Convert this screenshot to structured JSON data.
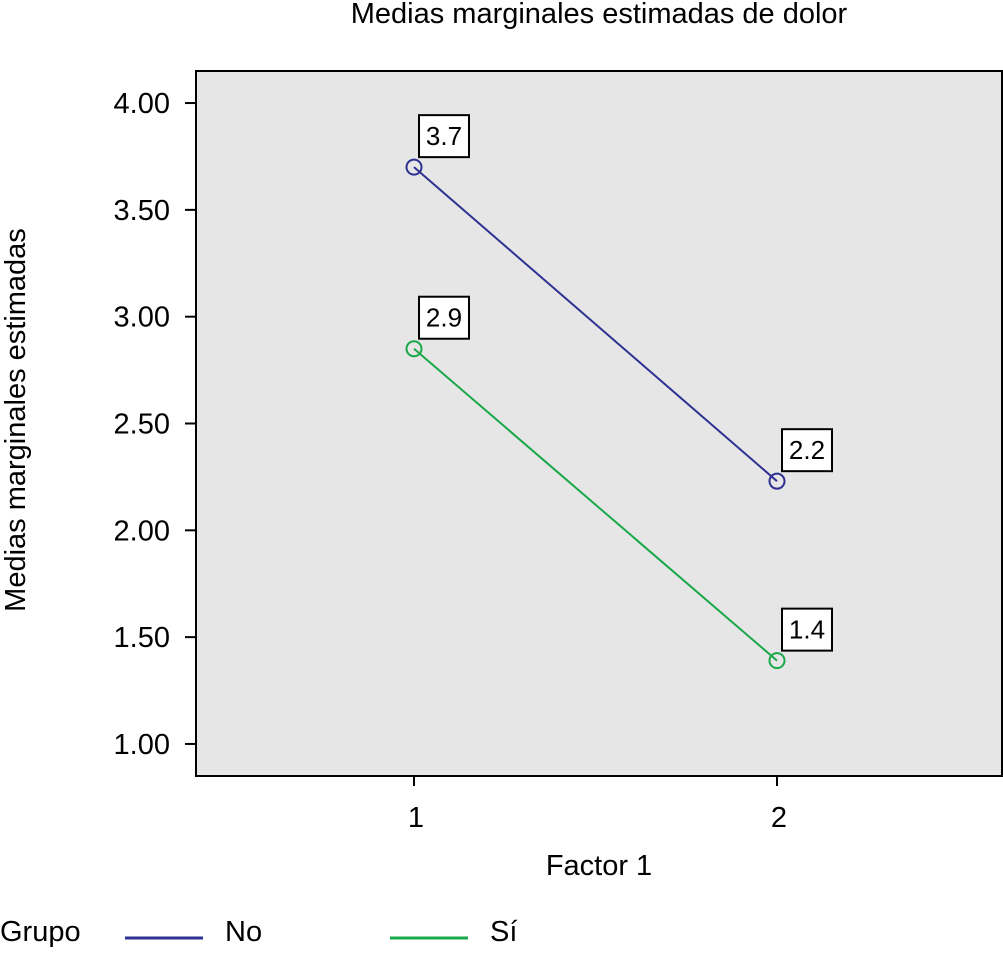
{
  "chart_data": {
    "type": "line",
    "title": "Medias marginales estimadas de dolor",
    "xlabel": "Factor 1",
    "ylabel": "Medias marginales estimadas",
    "categories": [
      "1",
      "2"
    ],
    "ylim": [
      0.85,
      4.15
    ],
    "yticks": [
      "1.00",
      "1.50",
      "2.00",
      "2.50",
      "3.00",
      "3.50",
      "4.00"
    ],
    "grid": false,
    "legend": {
      "title": "Grupo",
      "position": "bottom-left"
    },
    "series": [
      {
        "name": "No",
        "color": "#2e3192",
        "values": [
          3.7,
          2.23
        ],
        "labels": [
          "3.7",
          "2.2"
        ]
      },
      {
        "name": "Sí",
        "color": "#1aa84a",
        "values": [
          2.85,
          1.39
        ],
        "labels": [
          "2.9",
          "1.4"
        ]
      }
    ]
  }
}
